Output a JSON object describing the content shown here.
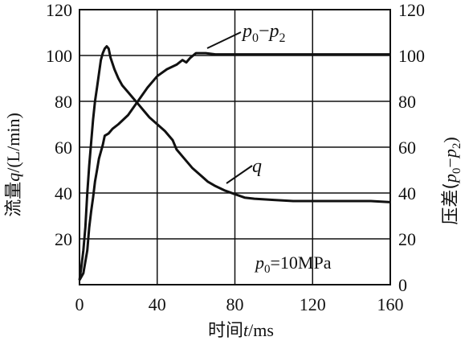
{
  "chart_data": {
    "type": "line",
    "x": {
      "label_prefix": "时间",
      "label_var": "t",
      "label_unit": "/ms",
      "ticks": [
        "0",
        "40",
        "80",
        "120",
        "160"
      ],
      "lim": [
        0,
        160
      ]
    },
    "y_left": {
      "label_prefix": "流量",
      "label_var": "q",
      "label_unit": "/(L/min)",
      "ticks": [
        "20",
        "40",
        "60",
        "80",
        "100",
        "120"
      ],
      "lim": [
        0,
        120
      ]
    },
    "y_right": {
      "label_prefix": "压差(",
      "label_var": "p",
      "label_sub0": "0",
      "label_minus": "−",
      "label_var2": "p",
      "label_sub2": "2",
      "label_close": ")",
      "ticks": [
        "0",
        "20",
        "40",
        "60",
        "80",
        "100",
        "120"
      ],
      "lim": [
        0,
        120
      ]
    },
    "grid": true,
    "series": [
      {
        "name": "q",
        "label_parts": {
          "var": "q"
        },
        "points": [
          [
            0,
            2
          ],
          [
            1,
            8
          ],
          [
            2,
            15
          ],
          [
            3,
            25
          ],
          [
            4,
            40
          ],
          [
            5,
            52
          ],
          [
            6,
            62
          ],
          [
            7,
            72
          ],
          [
            8,
            80
          ],
          [
            9,
            86
          ],
          [
            10,
            92
          ],
          [
            11,
            98
          ],
          [
            12,
            101
          ],
          [
            13,
            103
          ],
          [
            14,
            104
          ],
          [
            15,
            103
          ],
          [
            16,
            99
          ],
          [
            18,
            94
          ],
          [
            20,
            90
          ],
          [
            22,
            87
          ],
          [
            25,
            84
          ],
          [
            28,
            81
          ],
          [
            30,
            79
          ],
          [
            33,
            76
          ],
          [
            36,
            73
          ],
          [
            40,
            70
          ],
          [
            44,
            67
          ],
          [
            48,
            63
          ],
          [
            50,
            59
          ],
          [
            54,
            55
          ],
          [
            58,
            51
          ],
          [
            62,
            48
          ],
          [
            66,
            45
          ],
          [
            70,
            43
          ],
          [
            75,
            41
          ],
          [
            80,
            39.5
          ],
          [
            85,
            38
          ],
          [
            90,
            37.5
          ],
          [
            100,
            37
          ],
          [
            110,
            36.5
          ],
          [
            120,
            36.5
          ],
          [
            130,
            36.5
          ],
          [
            140,
            36.5
          ],
          [
            150,
            36.5
          ],
          [
            160,
            36
          ]
        ]
      },
      {
        "name": "p0−p2",
        "label_parts": {
          "var": "p",
          "sub0": "0",
          "minus": "−",
          "var2": "p",
          "sub2": "2"
        },
        "points": [
          [
            0,
            2
          ],
          [
            2,
            5
          ],
          [
            4,
            15
          ],
          [
            5,
            25
          ],
          [
            6,
            32
          ],
          [
            7,
            38
          ],
          [
            8,
            45
          ],
          [
            9,
            50
          ],
          [
            10,
            55
          ],
          [
            11,
            58
          ],
          [
            12,
            61
          ],
          [
            13,
            65
          ],
          [
            15,
            66
          ],
          [
            17,
            68
          ],
          [
            20,
            70
          ],
          [
            25,
            74
          ],
          [
            30,
            80
          ],
          [
            35,
            86
          ],
          [
            40,
            91
          ],
          [
            45,
            94
          ],
          [
            50,
            96
          ],
          [
            53,
            98
          ],
          [
            55,
            97
          ],
          [
            57,
            99
          ],
          [
            60,
            101
          ],
          [
            65,
            101
          ],
          [
            70,
            100.5
          ],
          [
            80,
            100.5
          ],
          [
            100,
            100.5
          ],
          [
            120,
            100.5
          ],
          [
            140,
            100.5
          ],
          [
            160,
            100.5
          ]
        ]
      }
    ],
    "annotation": {
      "var": "p",
      "sub": "0",
      "text": "=10MPa"
    }
  }
}
